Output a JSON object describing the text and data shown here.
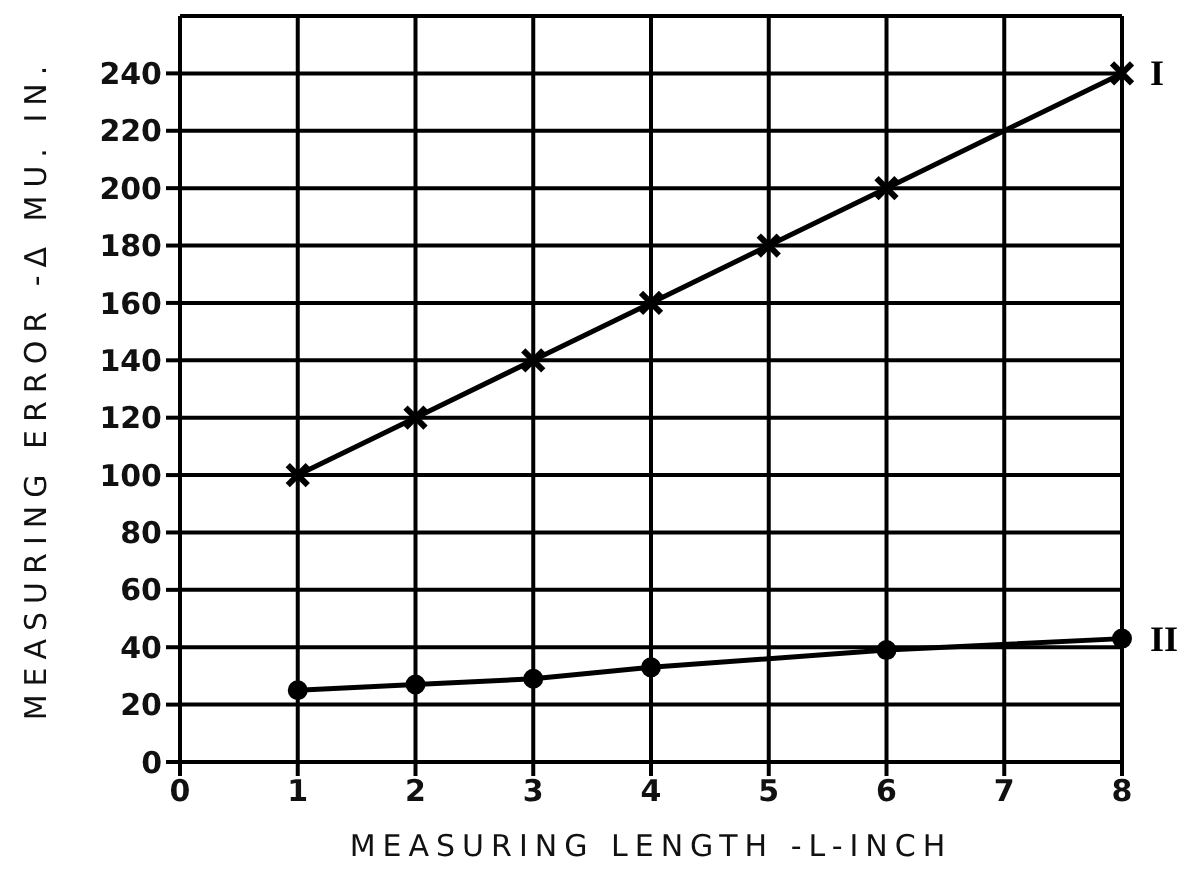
{
  "chart_data": {
    "type": "line",
    "xlabel": "MEASURING LENGTH -L-INCH",
    "ylabel": "MEASURING ERROR -Δ MU. IN.",
    "xlim": [
      0,
      8
    ],
    "xticks": [
      0,
      1,
      2,
      3,
      4,
      5,
      6,
      7,
      8
    ],
    "ylim": [
      0,
      260
    ],
    "yticks": [
      0,
      20,
      40,
      60,
      80,
      100,
      120,
      140,
      160,
      180,
      200,
      220,
      240
    ],
    "grid": true,
    "series": [
      {
        "name": "I",
        "color": "#000000",
        "marker": "cross",
        "x": [
          1,
          2,
          3,
          4,
          5,
          6,
          8
        ],
        "values": [
          100,
          120,
          140,
          160,
          180,
          200,
          240
        ]
      },
      {
        "name": "II",
        "color": "#000000",
        "marker": "circle",
        "x": [
          1,
          2,
          3,
          4,
          6,
          8
        ],
        "values": [
          25,
          27,
          29,
          33,
          39,
          43
        ]
      }
    ]
  }
}
